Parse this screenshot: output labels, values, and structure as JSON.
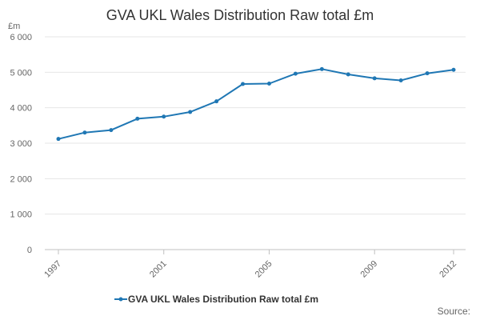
{
  "chart_data": {
    "type": "line",
    "title": "GVA UKL Wales Distribution Raw total £m",
    "ylabel": "£m",
    "xlabel": "",
    "ylim": [
      0,
      6000
    ],
    "y_ticks": [
      0,
      1000,
      2000,
      3000,
      4000,
      5000,
      6000
    ],
    "y_tick_labels": [
      "0",
      "1 000",
      "2 000",
      "3 000",
      "4 000",
      "5 000",
      "6 000"
    ],
    "x_tick_labels": [
      "1997",
      "2001",
      "2005",
      "2009",
      "2012"
    ],
    "x_tick_years": [
      1997,
      2001,
      2005,
      2009,
      2012
    ],
    "grid": "horizontal",
    "series": [
      {
        "name": "GVA UKL Wales Distribution Raw total £m",
        "color": "#1f77b4",
        "x": [
          1997,
          1998,
          1999,
          2000,
          2001,
          2002,
          2003,
          2004,
          2005,
          2006,
          2007,
          2008,
          2009,
          2010,
          2011,
          2012
        ],
        "values": [
          3120,
          3300,
          3370,
          3690,
          3750,
          3880,
          4180,
          4670,
          4680,
          4960,
          5090,
          4940,
          4830,
          4770,
          4970,
          5070
        ]
      }
    ],
    "legend_position": "bottom-center",
    "source_label": "Source:"
  }
}
